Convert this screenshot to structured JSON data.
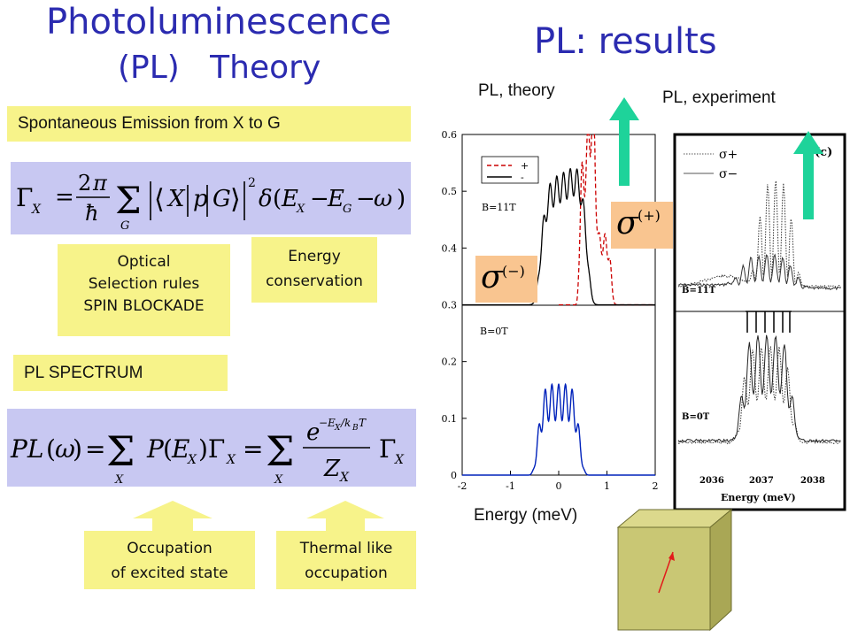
{
  "left": {
    "title_line1": "Photoluminescence",
    "title_line2": "(PL)   Theory",
    "spontaneous": "Spontaneous Emission from X to G",
    "optical": [
      "Optical",
      "Selection rules",
      "SPIN BLOCKADE"
    ],
    "energy": [
      "Energy",
      "conservation"
    ],
    "pl_spectrum": "PL SPECTRUM",
    "occupation": [
      "Occupation",
      "of excited state"
    ],
    "thermal": [
      "Thermal like",
      "occupation"
    ]
  },
  "right": {
    "title": "PL: results",
    "theory_label": "PL, theory",
    "experiment_label": "PL, experiment",
    "energy_axis_label": "Energy (meV)",
    "sigma_minus": "σ",
    "sigma_minus_sup": "(−)",
    "sigma_plus": "σ",
    "sigma_plus_sup": "(+)"
  },
  "chart_data": [
    {
      "type": "line",
      "xlim": [
        -2,
        2
      ],
      "ylim": [
        0,
        0.6
      ],
      "x_ticks": [
        "-2",
        "-1",
        "0",
        "1",
        "2"
      ],
      "y_ticks": [
        "0",
        "0.1",
        "0.2",
        "0.3",
        "0.4",
        "0.5",
        "0.6"
      ],
      "legend": [
        "+",
        "-"
      ],
      "annotations": [
        "B=11T",
        "B=0T"
      ],
      "series": [
        {
          "name": "-",
          "color": "#000000"
        },
        {
          "name": "+",
          "color": "#cc0000"
        },
        {
          "color": "#0022bb"
        }
      ]
    },
    {
      "type": "line",
      "title": "(c)",
      "xlabel": "Energy (meV)",
      "x_ticks": [
        "2036",
        "2037",
        "2038"
      ],
      "legend": [
        "σ+",
        "σ−"
      ],
      "annotations": [
        "B=11T",
        "B=0T"
      ]
    }
  ],
  "colors": {
    "title": "#2b2bb0",
    "yellow": "#f7f38a",
    "lavender": "#c8c8f2",
    "arrow": "#1ed39a",
    "cube": "#c9c774"
  }
}
